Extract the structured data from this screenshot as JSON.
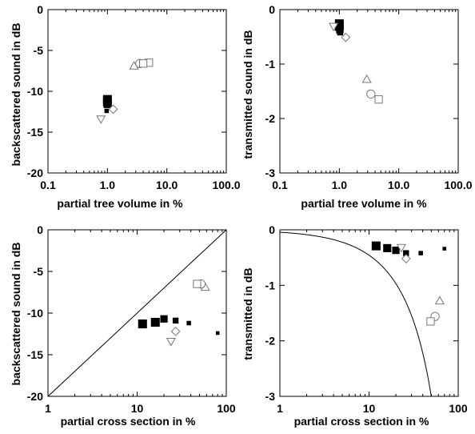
{
  "chart_data": [
    {
      "type": "scatter",
      "id": "tl",
      "xlabel": "partial tree volume in %",
      "ylabel": "backscattered sound in dB",
      "xscale": "log",
      "xlim": [
        0.1,
        100
      ],
      "ylim": [
        -20,
        0
      ],
      "xticks": [
        0.1,
        1,
        10,
        100
      ],
      "xtick_labels": [
        "0.1",
        "1.0",
        "10.0",
        "100.0"
      ],
      "yticks": [
        0,
        -5,
        -10,
        -15,
        -20
      ],
      "ytick_labels": [
        "0",
        "-5",
        "-10",
        "-15",
        "-20"
      ],
      "grid": false,
      "series": [
        {
          "marker": "square-filled",
          "points": [
            [
              0.97,
              -12.4,
              0.6
            ],
            [
              0.99,
              -11.6,
              1.0
            ],
            [
              1.0,
              -11.3,
              1.2
            ],
            [
              1.0,
              -11.0,
              1.2
            ]
          ]
        },
        {
          "marker": "triangle-down",
          "points": [
            [
              0.78,
              -13.4
            ]
          ]
        },
        {
          "marker": "diamond",
          "points": [
            [
              1.25,
              -12.2
            ]
          ]
        },
        {
          "marker": "triangle-up",
          "points": [
            [
              2.8,
              -6.9
            ]
          ]
        },
        {
          "marker": "circle",
          "points": [
            [
              3.5,
              -6.6
            ]
          ]
        },
        {
          "marker": "square",
          "points": [
            [
              5.0,
              -6.5
            ],
            [
              4.0,
              -6.6
            ]
          ]
        }
      ]
    },
    {
      "type": "scatter",
      "id": "tr",
      "xlabel": "partial tree volume in %",
      "ylabel": "transmitted sound in dB",
      "xscale": "log",
      "xlim": [
        0.1,
        100
      ],
      "ylim": [
        -3,
        0
      ],
      "xticks": [
        0.1,
        1,
        10,
        100
      ],
      "xtick_labels": [
        "0.1",
        "1.0",
        "10.0",
        "100.0"
      ],
      "yticks": [
        0,
        -1,
        -2,
        -3
      ],
      "ytick_labels": [
        "0",
        "-1",
        "-2",
        "-3"
      ],
      "grid": false,
      "series": [
        {
          "marker": "square-filled",
          "points": [
            [
              1.0,
              -0.26,
              1.2
            ],
            [
              1.0,
              -0.31,
              1.2
            ],
            [
              1.02,
              -0.37,
              1.0
            ],
            [
              1.03,
              -0.42,
              0.8
            ]
          ]
        },
        {
          "marker": "triangle-down",
          "points": [
            [
              0.8,
              -0.31
            ]
          ]
        },
        {
          "marker": "diamond",
          "points": [
            [
              1.28,
              -0.51
            ]
          ]
        },
        {
          "marker": "triangle-up",
          "points": [
            [
              2.9,
              -1.28
            ]
          ]
        },
        {
          "marker": "circle",
          "points": [
            [
              3.4,
              -1.55
            ]
          ]
        },
        {
          "marker": "square",
          "points": [
            [
              4.6,
              -1.65
            ]
          ]
        }
      ]
    },
    {
      "type": "scatter",
      "id": "bl",
      "xlabel": "partial cross section in %",
      "ylabel": "backscattered sound in dB",
      "xscale": "log",
      "xlim": [
        1,
        100
      ],
      "ylim": [
        -20,
        0
      ],
      "xticks": [
        1,
        10,
        100
      ],
      "xtick_labels": [
        "1",
        "10",
        "100"
      ],
      "yticks": [
        0,
        -5,
        -10,
        -15,
        -20
      ],
      "ytick_labels": [
        "0",
        "-5",
        "-10",
        "-15",
        "-20"
      ],
      "grid": false,
      "curve": {
        "kind": "line",
        "from": [
          1,
          -20
        ],
        "to": [
          100,
          0
        ]
      },
      "series": [
        {
          "marker": "square-filled",
          "points": [
            [
              11.5,
              -11.3,
              1.2
            ],
            [
              16.0,
              -11.1,
              1.2
            ],
            [
              20.0,
              -10.7,
              1.0
            ],
            [
              27.0,
              -10.9,
              0.8
            ],
            [
              38.0,
              -11.2,
              0.6
            ],
            [
              80.0,
              -12.4,
              0.5
            ]
          ]
        },
        {
          "marker": "triangle-down",
          "points": [
            [
              24.0,
              -13.4
            ]
          ]
        },
        {
          "marker": "diamond",
          "points": [
            [
              27.0,
              -12.2
            ]
          ]
        },
        {
          "marker": "triangle-up",
          "points": [
            [
              58.0,
              -6.9
            ]
          ]
        },
        {
          "marker": "circle",
          "points": [
            [
              52.0,
              -6.5
            ]
          ]
        },
        {
          "marker": "square",
          "points": [
            [
              47.0,
              -6.5
            ]
          ]
        }
      ]
    },
    {
      "type": "scatter",
      "id": "br",
      "xlabel": "partial cross section in %",
      "ylabel": "transmitted in dB",
      "xscale": "log",
      "xlim": [
        1,
        100
      ],
      "ylim": [
        -3,
        0
      ],
      "xticks": [
        1,
        10,
        100
      ],
      "xtick_labels": [
        "1",
        "10",
        "100"
      ],
      "yticks": [
        0,
        -1,
        -2,
        -3
      ],
      "ytick_labels": [
        "0",
        "-1",
        "-2",
        "-3"
      ],
      "grid": false,
      "curve": {
        "kind": "transmission",
        "formula": "10*log10(1 - x/100)"
      },
      "series": [
        {
          "marker": "square-filled",
          "points": [
            [
              12.0,
              -0.29,
              1.2
            ],
            [
              16.0,
              -0.33,
              1.1
            ],
            [
              20.0,
              -0.37,
              1.0
            ],
            [
              26.0,
              -0.42,
              0.8
            ],
            [
              38.0,
              -0.42,
              0.6
            ],
            [
              70.0,
              -0.34,
              0.5
            ]
          ]
        },
        {
          "marker": "triangle-down",
          "points": [
            [
              23.0,
              -0.32
            ]
          ]
        },
        {
          "marker": "diamond",
          "points": [
            [
              26.0,
              -0.52
            ]
          ]
        },
        {
          "marker": "triangle-up",
          "points": [
            [
              62.0,
              -1.28
            ]
          ]
        },
        {
          "marker": "circle",
          "points": [
            [
              55.0,
              -1.56
            ]
          ]
        },
        {
          "marker": "square",
          "points": [
            [
              49.0,
              -1.65
            ]
          ]
        }
      ]
    }
  ]
}
